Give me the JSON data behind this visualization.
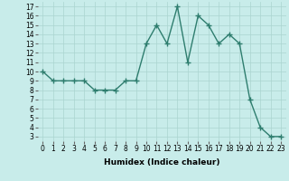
{
  "x": [
    0,
    1,
    2,
    3,
    4,
    5,
    6,
    7,
    8,
    9,
    10,
    11,
    12,
    13,
    14,
    15,
    16,
    17,
    18,
    19,
    20,
    21,
    22,
    23
  ],
  "y": [
    10,
    9,
    9,
    9,
    9,
    8,
    8,
    8,
    9,
    9,
    13,
    15,
    13,
    17,
    11,
    16,
    15,
    13,
    14,
    13,
    7,
    4,
    3,
    3
  ],
  "line_color": "#2e7d6e",
  "marker": "+",
  "marker_size": 4,
  "marker_lw": 1.0,
  "line_width": 1.0,
  "bg_color": "#c8ecea",
  "grid_color": "#aad4d0",
  "xlabel": "Humidex (Indice chaleur)",
  "xlim": [
    -0.5,
    23.5
  ],
  "ylim": [
    2.5,
    17.5
  ],
  "yticks": [
    3,
    4,
    5,
    6,
    7,
    8,
    9,
    10,
    11,
    12,
    13,
    14,
    15,
    16,
    17
  ],
  "xticks": [
    0,
    1,
    2,
    3,
    4,
    5,
    6,
    7,
    8,
    9,
    10,
    11,
    12,
    13,
    14,
    15,
    16,
    17,
    18,
    19,
    20,
    21,
    22,
    23
  ],
  "tick_fontsize": 5.5,
  "label_fontsize": 6.5
}
